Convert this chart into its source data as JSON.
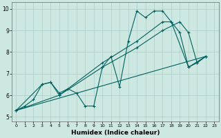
{
  "xlabel": "Humidex (Indice chaleur)",
  "xlim": [
    -0.5,
    23.5
  ],
  "ylim": [
    4.8,
    10.3
  ],
  "xticks": [
    0,
    1,
    2,
    3,
    4,
    5,
    6,
    7,
    8,
    9,
    10,
    11,
    12,
    13,
    14,
    15,
    16,
    17,
    18,
    19,
    20,
    21,
    22,
    23
  ],
  "yticks": [
    5,
    6,
    7,
    8,
    9,
    10
  ],
  "bg_color": "#cce8e0",
  "grid_color": "#aacccc",
  "line_color": "#006060",
  "series1": [
    [
      0,
      5.3
    ],
    [
      1,
      5.5
    ],
    [
      2,
      5.8
    ],
    [
      3,
      6.5
    ],
    [
      4,
      6.6
    ],
    [
      5,
      6.1
    ],
    [
      6,
      6.3
    ],
    [
      7,
      6.1
    ],
    [
      8,
      5.5
    ],
    [
      9,
      5.5
    ],
    [
      10,
      7.3
    ],
    [
      11,
      7.8
    ],
    [
      12,
      6.4
    ],
    [
      13,
      8.5
    ],
    [
      14,
      9.9
    ],
    [
      15,
      9.6
    ],
    [
      16,
      9.9
    ],
    [
      17,
      9.9
    ],
    [
      18,
      9.4
    ],
    [
      19,
      8.9
    ],
    [
      20,
      7.3
    ],
    [
      21,
      7.5
    ],
    [
      22,
      7.8
    ]
  ],
  "series2": [
    [
      0,
      5.3
    ],
    [
      3,
      6.5
    ],
    [
      4,
      6.6
    ],
    [
      5,
      6.0
    ],
    [
      10,
      7.5
    ],
    [
      14,
      8.5
    ],
    [
      17,
      9.4
    ],
    [
      18,
      9.4
    ],
    [
      20,
      7.3
    ],
    [
      22,
      7.8
    ]
  ],
  "series3": [
    [
      0,
      5.3
    ],
    [
      22,
      7.8
    ]
  ],
  "series4": [
    [
      0,
      5.3
    ],
    [
      5,
      6.0
    ],
    [
      10,
      7.3
    ],
    [
      14,
      8.2
    ],
    [
      17,
      9.0
    ],
    [
      19,
      9.4
    ],
    [
      20,
      8.9
    ],
    [
      21,
      7.5
    ],
    [
      22,
      7.8
    ]
  ]
}
